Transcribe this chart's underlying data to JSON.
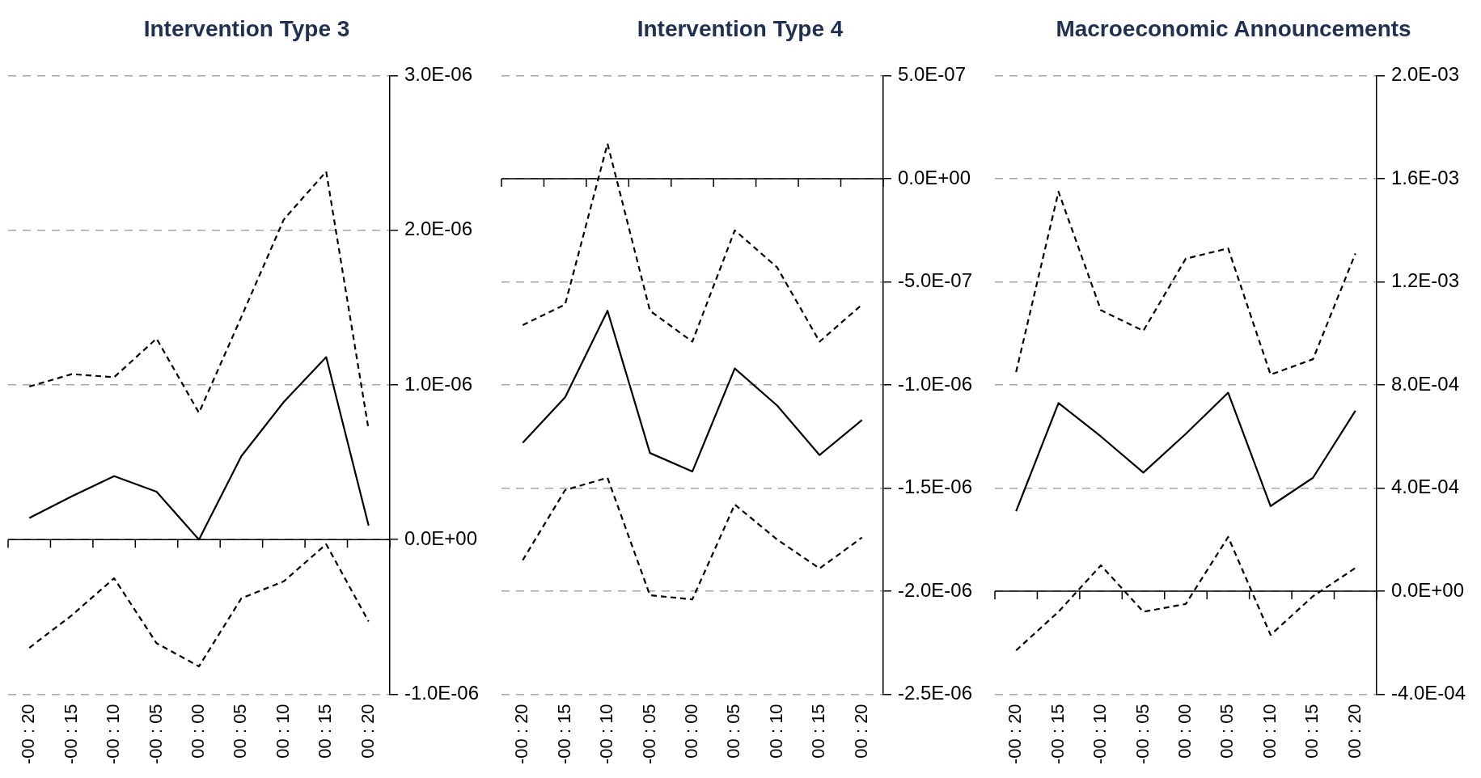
{
  "chart_data": [
    {
      "type": "line",
      "title": "Intervention Type 3",
      "categories": [
        "-00 : 20",
        "-00 : 15",
        "-00 : 10",
        "-00 : 05",
        "00 : 00",
        "00 : 05",
        "00 : 10",
        "00 : 15",
        "00 : 20"
      ],
      "series": [
        {
          "color": "#000000",
          "line_style": "dashed",
          "values": [
            9.9e-07,
            1.07e-06,
            1.05e-06,
            1.3e-06,
            8.2e-07,
            1.44e-06,
            2.07e-06,
            2.38e-06,
            7.1e-07
          ]
        },
        {
          "color": "#000000",
          "line_style": "solid",
          "values": [
            1.4e-07,
            2.8e-07,
            4.1e-07,
            3.1e-07,
            0.0,
            5.4e-07,
            8.9e-07,
            1.18e-06,
            9e-08
          ]
        },
        {
          "color": "#000000",
          "line_style": "dashed",
          "values": [
            -7e-07,
            -4.9e-07,
            -2.5e-07,
            -6.7e-07,
            -8.2e-07,
            -3.8e-07,
            -2.7e-07,
            -3e-08,
            -5.3e-07
          ]
        }
      ],
      "ylim": [
        -1e-06,
        3e-06
      ],
      "yticks": [
        {
          "value": -1e-06,
          "label": "-1.0E-06"
        },
        {
          "value": 0,
          "label": "0.0E+00"
        },
        {
          "value": 1e-06,
          "label": "1.0E-06"
        },
        {
          "value": 2e-06,
          "label": "2.0E-06"
        },
        {
          "value": 3e-06,
          "label": "3.0E-06"
        }
      ],
      "grid": "y",
      "legend": false,
      "marker": "none"
    },
    {
      "type": "line",
      "title": "Intervention Type 4",
      "categories": [
        "-00 : 20",
        "-00 : 15",
        "-00 : 10",
        "-00 : 05",
        "00 : 00",
        "00 : 05",
        "00 : 10",
        "00 : 15",
        "00 : 20"
      ],
      "series": [
        {
          "color": "#000000",
          "line_style": "dashed",
          "values": [
            -7.1e-07,
            -6.1e-07,
            1.7e-07,
            -6.4e-07,
            -7.9e-07,
            -2.5e-07,
            -4.3e-07,
            -7.9e-07,
            -6.1e-07
          ]
        },
        {
          "color": "#000000",
          "line_style": "solid",
          "values": [
            -1.28e-06,
            -1.06e-06,
            -6.4e-07,
            -1.33e-06,
            -1.42e-06,
            -9.2e-07,
            -1.1e-06,
            -1.34e-06,
            -1.17e-06
          ]
        },
        {
          "color": "#000000",
          "line_style": "dashed",
          "values": [
            -1.85e-06,
            -1.51e-06,
            -1.45e-06,
            -2.02e-06,
            -2.04e-06,
            -1.58e-06,
            -1.75e-06,
            -1.89e-06,
            -1.74e-06
          ]
        }
      ],
      "ylim": [
        -2.5e-06,
        5e-07
      ],
      "yticks": [
        {
          "value": -2.5e-06,
          "label": "-2.5E-06"
        },
        {
          "value": -2e-06,
          "label": "-2.0E-06"
        },
        {
          "value": -1.5e-06,
          "label": "-1.5E-06"
        },
        {
          "value": -1e-06,
          "label": "-1.0E-06"
        },
        {
          "value": -5e-07,
          "label": "-5.0E-07"
        },
        {
          "value": 0,
          "label": "0.0E+00"
        },
        {
          "value": 5e-07,
          "label": "5.0E-07"
        }
      ],
      "grid": "y",
      "legend": false,
      "marker": "none"
    },
    {
      "type": "line",
      "title": "Macroeconomic Announcements",
      "categories": [
        "-00 : 20",
        "-00 : 15",
        "-00 : 10",
        "-00 : 05",
        "00 : 00",
        "00 : 05",
        "00 : 10",
        "00 : 15",
        "00 : 20"
      ],
      "series": [
        {
          "color": "#000000",
          "line_style": "dashed",
          "values": [
            0.00085,
            0.00155,
            0.00109,
            0.00101,
            0.00129,
            0.00133,
            0.00084,
            0.0009,
            0.00131
          ]
        },
        {
          "color": "#000000",
          "line_style": "solid",
          "values": [
            0.00031,
            0.00073,
            0.0006,
            0.00046,
            0.00061,
            0.00077,
            0.00033,
            0.00044,
            0.0007
          ]
        },
        {
          "color": "#000000",
          "line_style": "dashed",
          "values": [
            -0.00023,
            -8e-05,
            0.0001,
            -8e-05,
            -5e-05,
            0.00021,
            -0.00017,
            -2e-05,
            9e-05
          ]
        }
      ],
      "ylim": [
        -0.0004,
        0.002
      ],
      "yticks": [
        {
          "value": -0.0004,
          "label": "-4.0E-04"
        },
        {
          "value": 0,
          "label": "0.0E+00"
        },
        {
          "value": 0.0004,
          "label": "4.0E-04"
        },
        {
          "value": 0.0008,
          "label": "8.0E-04"
        },
        {
          "value": 0.0012,
          "label": "1.2E-03"
        },
        {
          "value": 0.0016,
          "label": "1.6E-03"
        },
        {
          "value": 0.002,
          "label": "2.0E-03"
        }
      ],
      "grid": "y",
      "legend": false,
      "marker": "none"
    }
  ]
}
